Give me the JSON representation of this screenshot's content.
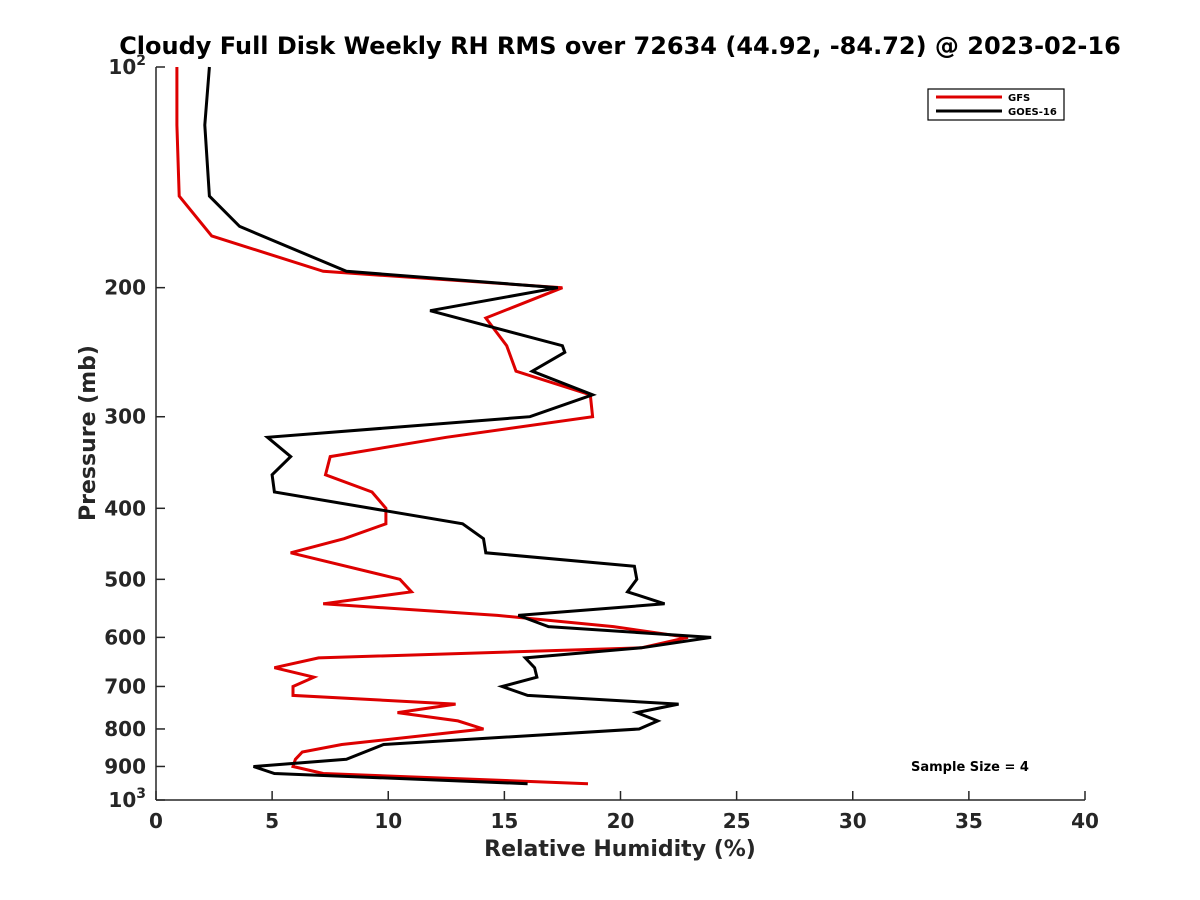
{
  "chart_data": {
    "type": "line",
    "title": "Cloudy Full Disk Weekly RH RMS over 72634 (44.92, -84.72) @ 2023-02-16",
    "xlabel": "Relative Humidity (%)",
    "ylabel": "Pressure (mb)",
    "xlim": [
      0,
      40
    ],
    "ylim": [
      100,
      1000
    ],
    "y_scale": "log",
    "y_reversed": true,
    "x_ticks": [
      0,
      5,
      10,
      15,
      20,
      25,
      30,
      35,
      40
    ],
    "x_tick_labels": [
      "0",
      "5",
      "10",
      "15",
      "20",
      "25",
      "30",
      "35",
      "40"
    ],
    "y_ticks": [
      100,
      200,
      300,
      400,
      500,
      600,
      700,
      800,
      900,
      1000
    ],
    "y_tick_labels": [
      {
        "base": "10",
        "exp": "2"
      },
      {
        "base": "200",
        "exp": ""
      },
      {
        "base": "300",
        "exp": ""
      },
      {
        "base": "400",
        "exp": ""
      },
      {
        "base": "500",
        "exp": ""
      },
      {
        "base": "600",
        "exp": ""
      },
      {
        "base": "700",
        "exp": ""
      },
      {
        "base": "800",
        "exp": ""
      },
      {
        "base": "900",
        "exp": ""
      },
      {
        "base": "10",
        "exp": "3"
      }
    ],
    "grid": false,
    "legend_placement": "top-right",
    "annotation": "Sample Size = 4",
    "series": [
      {
        "name": "GFS",
        "color": "#dd0000",
        "points": [
          [
            0.9,
            100
          ],
          [
            0.9,
            120
          ],
          [
            1.0,
            150
          ],
          [
            2.4,
            170
          ],
          [
            7.2,
            190
          ],
          [
            17.5,
            200
          ],
          [
            14.2,
            220
          ],
          [
            15.1,
            240
          ],
          [
            15.5,
            260
          ],
          [
            18.7,
            280
          ],
          [
            18.8,
            300
          ],
          [
            12.5,
            320
          ],
          [
            7.5,
            340
          ],
          [
            7.3,
            360
          ],
          [
            9.3,
            380
          ],
          [
            9.9,
            400
          ],
          [
            9.9,
            420
          ],
          [
            8.1,
            440
          ],
          [
            5.8,
            460
          ],
          [
            10.5,
            500
          ],
          [
            11.0,
            520
          ],
          [
            7.2,
            540
          ],
          [
            14.7,
            560
          ],
          [
            19.7,
            580
          ],
          [
            22.9,
            600
          ],
          [
            20.9,
            620
          ],
          [
            7.0,
            640
          ],
          [
            5.1,
            660
          ],
          [
            6.8,
            680
          ],
          [
            5.9,
            700
          ],
          [
            5.9,
            720
          ],
          [
            12.9,
            740
          ],
          [
            10.4,
            760
          ],
          [
            13.0,
            780
          ],
          [
            14.1,
            800
          ],
          [
            8.0,
            840
          ],
          [
            6.3,
            860
          ],
          [
            6.0,
            880
          ],
          [
            5.9,
            900
          ],
          [
            7.2,
            920
          ],
          [
            18.6,
            950
          ]
        ]
      },
      {
        "name": "GOES-16",
        "color": "#000000",
        "points": [
          [
            2.3,
            100
          ],
          [
            2.1,
            120
          ],
          [
            2.3,
            150
          ],
          [
            3.6,
            165
          ],
          [
            8.2,
            190
          ],
          [
            17.3,
            200
          ],
          [
            11.8,
            215
          ],
          [
            17.5,
            240
          ],
          [
            17.6,
            245
          ],
          [
            16.2,
            260
          ],
          [
            18.8,
            280
          ],
          [
            16.1,
            300
          ],
          [
            4.8,
            320
          ],
          [
            5.8,
            340
          ],
          [
            5.0,
            360
          ],
          [
            5.1,
            380
          ],
          [
            13.2,
            420
          ],
          [
            14.1,
            440
          ],
          [
            14.2,
            460
          ],
          [
            20.6,
            480
          ],
          [
            20.7,
            500
          ],
          [
            20.3,
            520
          ],
          [
            21.9,
            540
          ],
          [
            15.6,
            560
          ],
          [
            16.9,
            580
          ],
          [
            23.9,
            600
          ],
          [
            20.9,
            620
          ],
          [
            15.9,
            640
          ],
          [
            16.3,
            660
          ],
          [
            16.4,
            680
          ],
          [
            14.9,
            700
          ],
          [
            16.0,
            720
          ],
          [
            22.5,
            740
          ],
          [
            20.7,
            760
          ],
          [
            21.6,
            780
          ],
          [
            20.8,
            800
          ],
          [
            9.8,
            840
          ],
          [
            8.2,
            880
          ],
          [
            4.2,
            900
          ],
          [
            5.1,
            920
          ],
          [
            16.0,
            950
          ]
        ]
      }
    ]
  }
}
